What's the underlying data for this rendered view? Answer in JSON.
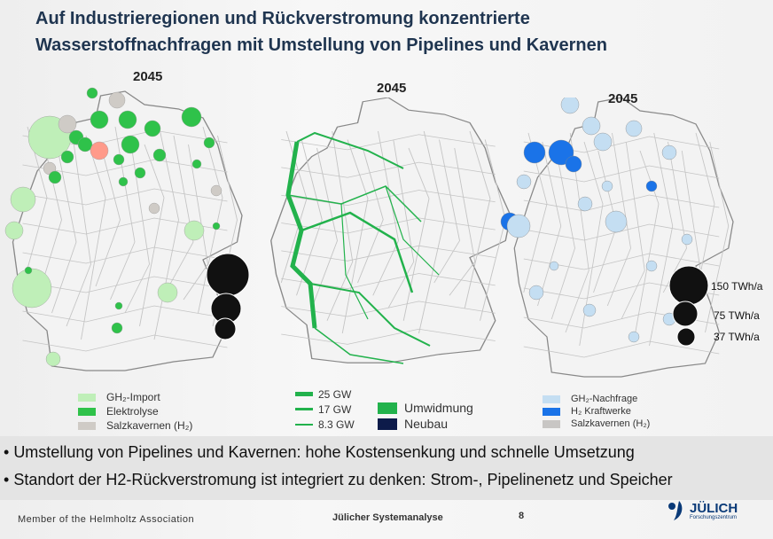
{
  "title": {
    "line1": "Auf Industrieregionen und Rückverstromung konzentrierte",
    "line2": "Wasserstoffnachfragen mit Umstellung von Pipelines und Kavernen"
  },
  "maps": [
    {
      "year": "2045",
      "legend": [
        "GH₂-Import",
        "Elektrolyse",
        "Salzkavernen (H₂)"
      ],
      "colors": [
        "#bfefb8",
        "#2fc24a",
        "#cfcbc6"
      ]
    },
    {
      "year": "2045",
      "legend_lines": [
        "25  GW",
        "17  GW",
        "8.3 GW"
      ],
      "legend_types": [
        "Umwidmung",
        "Neubau"
      ],
      "colors": [
        "#22b24c",
        "#0d1b4a"
      ]
    },
    {
      "year": "2045",
      "legend": [
        "GH₂-Nachfrage",
        "H₂ Kraftwerke",
        "Salzkavernen (H₂)"
      ],
      "colors": [
        "#c4def2",
        "#1a73e8",
        "#c8c6c4"
      ],
      "scale": [
        "150 TWh/a",
        "75 TWh/a",
        "37 TWh/a"
      ]
    }
  ],
  "bullets": [
    "Umstellung von Pipelines und Kavernen: hohe Kostensenkung und schnelle Umsetzung",
    "Standort der H2-Rückverstromung ist integriert zu denken: Strom-, Pipelinenetz und  Speicher"
  ],
  "footer": {
    "left": "Member of the Helmholtz Association",
    "center": "Jülicher Systemanalyse",
    "page": "8",
    "logo": "JÜLICH",
    "logo_sub": "Forschungszentrum"
  }
}
